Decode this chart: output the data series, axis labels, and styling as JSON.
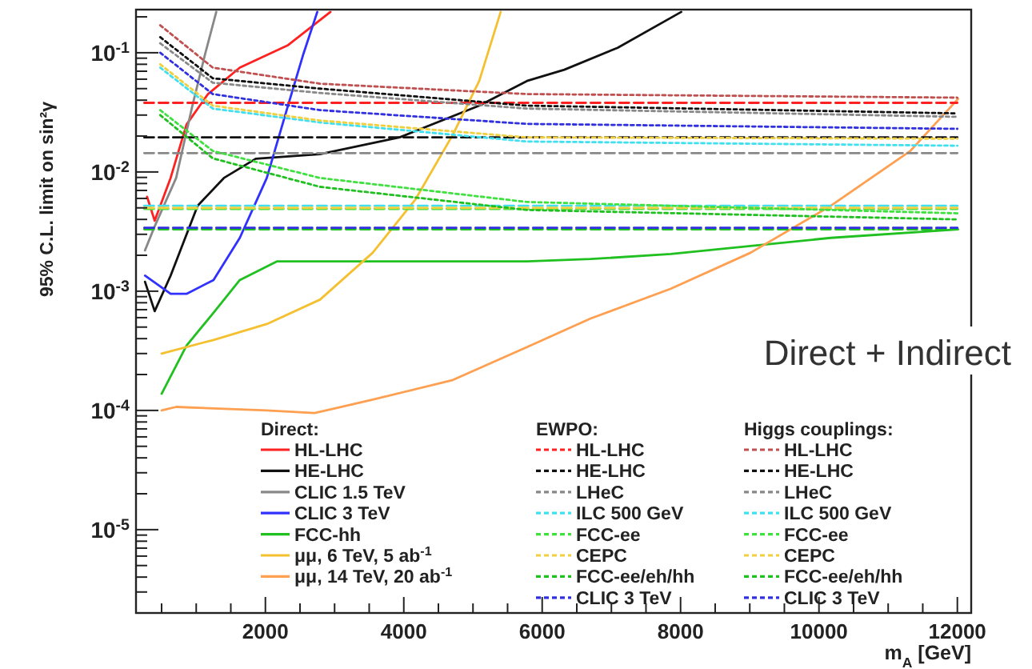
{
  "chart_data": {
    "type": "line",
    "ylabel": "95% C.L. limit on sin²γ",
    "xlabel": "m$_{A}$ [GeV]",
    "legend_title": "Direct:",
    "annotations": [
      "EWPO:",
      "Higgs couplings:",
      "Direct + Indirect"
    ],
    "log": "y",
    "grid": false,
    "legend": "bottom",
    "xlim": [
      130,
      12200
    ],
    "ylim": [
      2e-06,
      0.23
    ],
    "xticks": [
      {
        "value": 500,
        "label": null
      },
      {
        "value": 1000,
        "label": null
      },
      {
        "value": 1500,
        "label": null
      },
      2000,
      {
        "value": 2500,
        "label": null
      },
      {
        "value": 3000,
        "label": null
      },
      {
        "value": 3500,
        "label": null
      },
      4000,
      {
        "value": 4500,
        "label": null
      },
      {
        "value": 5000,
        "label": null
      },
      {
        "value": 5500,
        "label": null
      },
      6000,
      {
        "value": 6500,
        "label": null
      },
      {
        "value": 7000,
        "label": null
      },
      {
        "value": 7500,
        "label": null
      },
      8000,
      {
        "value": 8500,
        "label": null
      },
      {
        "value": 9000,
        "label": null
      },
      {
        "value": 9500,
        "label": null
      },
      10000,
      {
        "value": 10500,
        "label": null
      },
      {
        "value": 11000,
        "label": null
      },
      {
        "value": 11500,
        "label": null
      },
      12000
    ],
    "yticks": [
      {
        "value": 2e-06,
        "label": null
      },
      {
        "value": 3e-06,
        "label": null
      },
      {
        "value": 4e-06,
        "label": null
      },
      {
        "value": 5e-06,
        "label": null
      },
      {
        "value": 6e-06,
        "label": null
      },
      {
        "value": 7e-06,
        "label": null
      },
      {
        "value": 8e-06,
        "label": null
      },
      {
        "value": 9e-06,
        "label": null
      },
      {
        "value": 1e-05,
        "label": "10$^{-5}$"
      },
      {
        "value": 2e-05,
        "label": null
      },
      {
        "value": 3e-05,
        "label": null
      },
      {
        "value": 4e-05,
        "label": null
      },
      {
        "value": 5e-05,
        "label": null
      },
      {
        "value": 6e-05,
        "label": null
      },
      {
        "value": 7e-05,
        "label": null
      },
      {
        "value": 8e-05,
        "label": null
      },
      {
        "value": 9e-05,
        "label": null
      },
      {
        "value": 0.0001,
        "label": "10$^{-4}$"
      },
      {
        "value": 0.0002,
        "label": null
      },
      {
        "value": 0.0003,
        "label": null
      },
      {
        "value": 0.0004,
        "label": null
      },
      {
        "value": 0.0005,
        "label": null
      },
      {
        "value": 0.0006,
        "label": null
      },
      {
        "value": 0.0007,
        "label": null
      },
      {
        "value": 0.0008,
        "label": null
      },
      {
        "value": 0.0009,
        "label": null
      },
      {
        "value": 0.001,
        "label": "10$^{-3}$"
      },
      {
        "value": 0.002,
        "label": null
      },
      {
        "value": 0.003,
        "label": null
      },
      {
        "value": 0.004,
        "label": null
      },
      {
        "value": 0.005,
        "label": null
      },
      {
        "value": 0.006,
        "label": null
      },
      {
        "value": 0.007,
        "label": null
      },
      {
        "value": 0.008,
        "label": null
      },
      {
        "value": 0.009,
        "label": null
      },
      {
        "value": 0.01,
        "label": "10$^{-2}$"
      },
      {
        "value": 0.02,
        "label": null
      },
      {
        "value": 0.03,
        "label": null
      },
      {
        "value": 0.04,
        "label": null
      },
      {
        "value": 0.05,
        "label": null
      },
      {
        "value": 0.06,
        "label": null
      },
      {
        "value": 0.07,
        "label": null
      },
      {
        "value": 0.08,
        "label": null
      },
      {
        "value": 0.09,
        "label": null
      },
      {
        "value": 0.1,
        "label": "10$^{-1}$"
      },
      {
        "value": 0.2,
        "label": null
      }
    ],
    "series": [
      {
        "name": "HL-LHC",
        "color": "#ff2020",
        "line_style": "solid",
        "x": [
          290,
          400,
          630,
          860,
          1170,
          1630,
          2320,
          2940
        ],
        "values": [
          0.0062,
          0.0039,
          0.0089,
          0.025,
          0.045,
          0.075,
          0.115,
          0.22
        ]
      },
      {
        "name": "HE-LHC",
        "color": "#111111",
        "line_style": "solid",
        "x": [
          260,
          400,
          630,
          1020,
          1400,
          1860,
          2790,
          3940,
          5090,
          5780,
          6320,
          7090,
          8010
        ],
        "values": [
          0.0012,
          0.00068,
          0.00135,
          0.0052,
          0.0089,
          0.0129,
          0.0141,
          0.0195,
          0.036,
          0.058,
          0.072,
          0.11,
          0.22
        ]
      },
      {
        "name": "CLIC 1.5 TeV",
        "color": "#888888",
        "line_style": "solid",
        "x": [
          260,
          400,
          710,
          940,
          1130,
          1290
        ],
        "values": [
          0.0022,
          0.0035,
          0.0089,
          0.035,
          0.098,
          0.22
        ]
      },
      {
        "name": "CLIC 3 TeV",
        "color": "#3030ff",
        "line_style": "solid",
        "x": [
          260,
          630,
          860,
          1250,
          1630,
          2020,
          2320,
          2550,
          2750
        ],
        "values": [
          0.00135,
          0.00095,
          0.00095,
          0.00124,
          0.0028,
          0.0089,
          0.035,
          0.098,
          0.22
        ]
      },
      {
        "name": "FCC-hh",
        "color": "#20c020",
        "line_style": "solid",
        "x": [
          500,
          860,
          1250,
          1630,
          2170,
          3550,
          5780,
          6700,
          7860,
          10170,
          12010
        ],
        "values": [
          0.000138,
          0.00035,
          0.00066,
          0.00124,
          0.00178,
          0.00178,
          0.00178,
          0.00186,
          0.00205,
          0.0028,
          0.0033
        ]
      },
      {
        "name": "μμ, 6 TeV, 5 ab$^{-1}$",
        "color": "#f5c030",
        "line_style": "solid",
        "x": [
          500,
          1250,
          2020,
          2790,
          3550,
          4170,
          4710,
          5090,
          5400
        ],
        "values": [
          0.0003,
          0.00039,
          0.00053,
          0.00085,
          0.0021,
          0.0059,
          0.0206,
          0.058,
          0.22
        ]
      },
      {
        "name": "μμ, 14 TeV, 20 ab$^{-1}$",
        "color": "#ff9f50",
        "line_style": "solid",
        "x": [
          500,
          710,
          2020,
          2710,
          3550,
          4710,
          5780,
          6700,
          7860,
          9010,
          10170,
          11320,
          12010
        ],
        "values": [
          0.0001,
          0.000107,
          0.0001,
          9.5e-05,
          0.000123,
          0.00018,
          0.00034,
          0.00059,
          0.00105,
          0.0021,
          0.0052,
          0.015,
          0.041
        ]
      },
      {
        "name": "HL-LHC",
        "color": "#ff2020",
        "line_style": "dashed",
        "x": [
          250,
          12000
        ],
        "values": [
          0.038,
          0.038
        ]
      },
      {
        "name": "HE-LHC",
        "color": "#111111",
        "line_style": "dashed",
        "x": [
          250,
          12000
        ],
        "values": [
          0.0195,
          0.0195
        ]
      },
      {
        "name": "LHeC",
        "color": "#888888",
        "line_style": "dashed",
        "x": [
          250,
          12000
        ],
        "values": [
          0.0144,
          0.0144
        ]
      },
      {
        "name": "ILC 500 GeV",
        "color": "#40e0f0",
        "line_style": "dashed",
        "x": [
          250,
          12000
        ],
        "values": [
          0.0052,
          0.0052
        ]
      },
      {
        "name": "FCC-ee",
        "color": "#40e040",
        "line_style": "dashed",
        "x": [
          250,
          12000
        ],
        "values": [
          0.0049,
          0.0049
        ]
      },
      {
        "name": "CEPC",
        "color": "#f0d040",
        "line_style": "dashed",
        "x": [
          250,
          12000
        ],
        "values": [
          0.005,
          0.005
        ]
      },
      {
        "name": "FCC-ee/eh/hh",
        "color": "#20c020",
        "line_style": "dashed",
        "x": [
          250,
          12000
        ],
        "values": [
          0.0033,
          0.0033
        ]
      },
      {
        "name": "CLIC 3 TeV",
        "color": "#3030e0",
        "line_style": "dashed",
        "x": [
          250,
          12000
        ],
        "values": [
          0.0034,
          0.0034
        ]
      },
      {
        "name": "HL-LHC",
        "color": "#c05050",
        "line_style": "dotted",
        "x": [
          480,
          1240,
          2790,
          5780,
          12000
        ],
        "values": [
          0.17,
          0.075,
          0.055,
          0.045,
          0.042
        ]
      },
      {
        "name": "HE-LHC",
        "color": "#111111",
        "line_style": "dotted",
        "x": [
          480,
          1240,
          2790,
          5780,
          12000
        ],
        "values": [
          0.135,
          0.061,
          0.05,
          0.036,
          0.031
        ]
      },
      {
        "name": "LHeC",
        "color": "#888888",
        "line_style": "dotted",
        "x": [
          480,
          1240,
          2790,
          5780,
          12000
        ],
        "values": [
          0.12,
          0.056,
          0.046,
          0.034,
          0.029
        ]
      },
      {
        "name": "ILC 500 GeV",
        "color": "#40e0f0",
        "line_style": "dotted",
        "x": [
          480,
          1240,
          2790,
          5780,
          12000
        ],
        "values": [
          0.075,
          0.034,
          0.026,
          0.018,
          0.0166
        ]
      },
      {
        "name": "FCC-ee",
        "color": "#40e040",
        "line_style": "dotted",
        "x": [
          480,
          1240,
          2790,
          5780,
          12000
        ],
        "values": [
          0.033,
          0.015,
          0.0089,
          0.0056,
          0.0045
        ]
      },
      {
        "name": "CEPC",
        "color": "#f0d040",
        "line_style": "dotted",
        "x": [
          480,
          1240,
          2790,
          5780,
          12000
        ],
        "values": [
          0.08,
          0.036,
          0.027,
          0.0195,
          0.019
        ]
      },
      {
        "name": "FCC-ee/eh/hh",
        "color": "#20c020",
        "line_style": "dotted",
        "x": [
          480,
          1240,
          2790,
          5780,
          12000
        ],
        "values": [
          0.03,
          0.013,
          0.0075,
          0.0048,
          0.004
        ]
      },
      {
        "name": "CLIC 3 TeV",
        "color": "#3030e0",
        "line_style": "dotted",
        "x": [
          480,
          1240,
          2790,
          5780,
          12000
        ],
        "values": [
          0.1,
          0.045,
          0.033,
          0.0253,
          0.023
        ]
      }
    ]
  }
}
